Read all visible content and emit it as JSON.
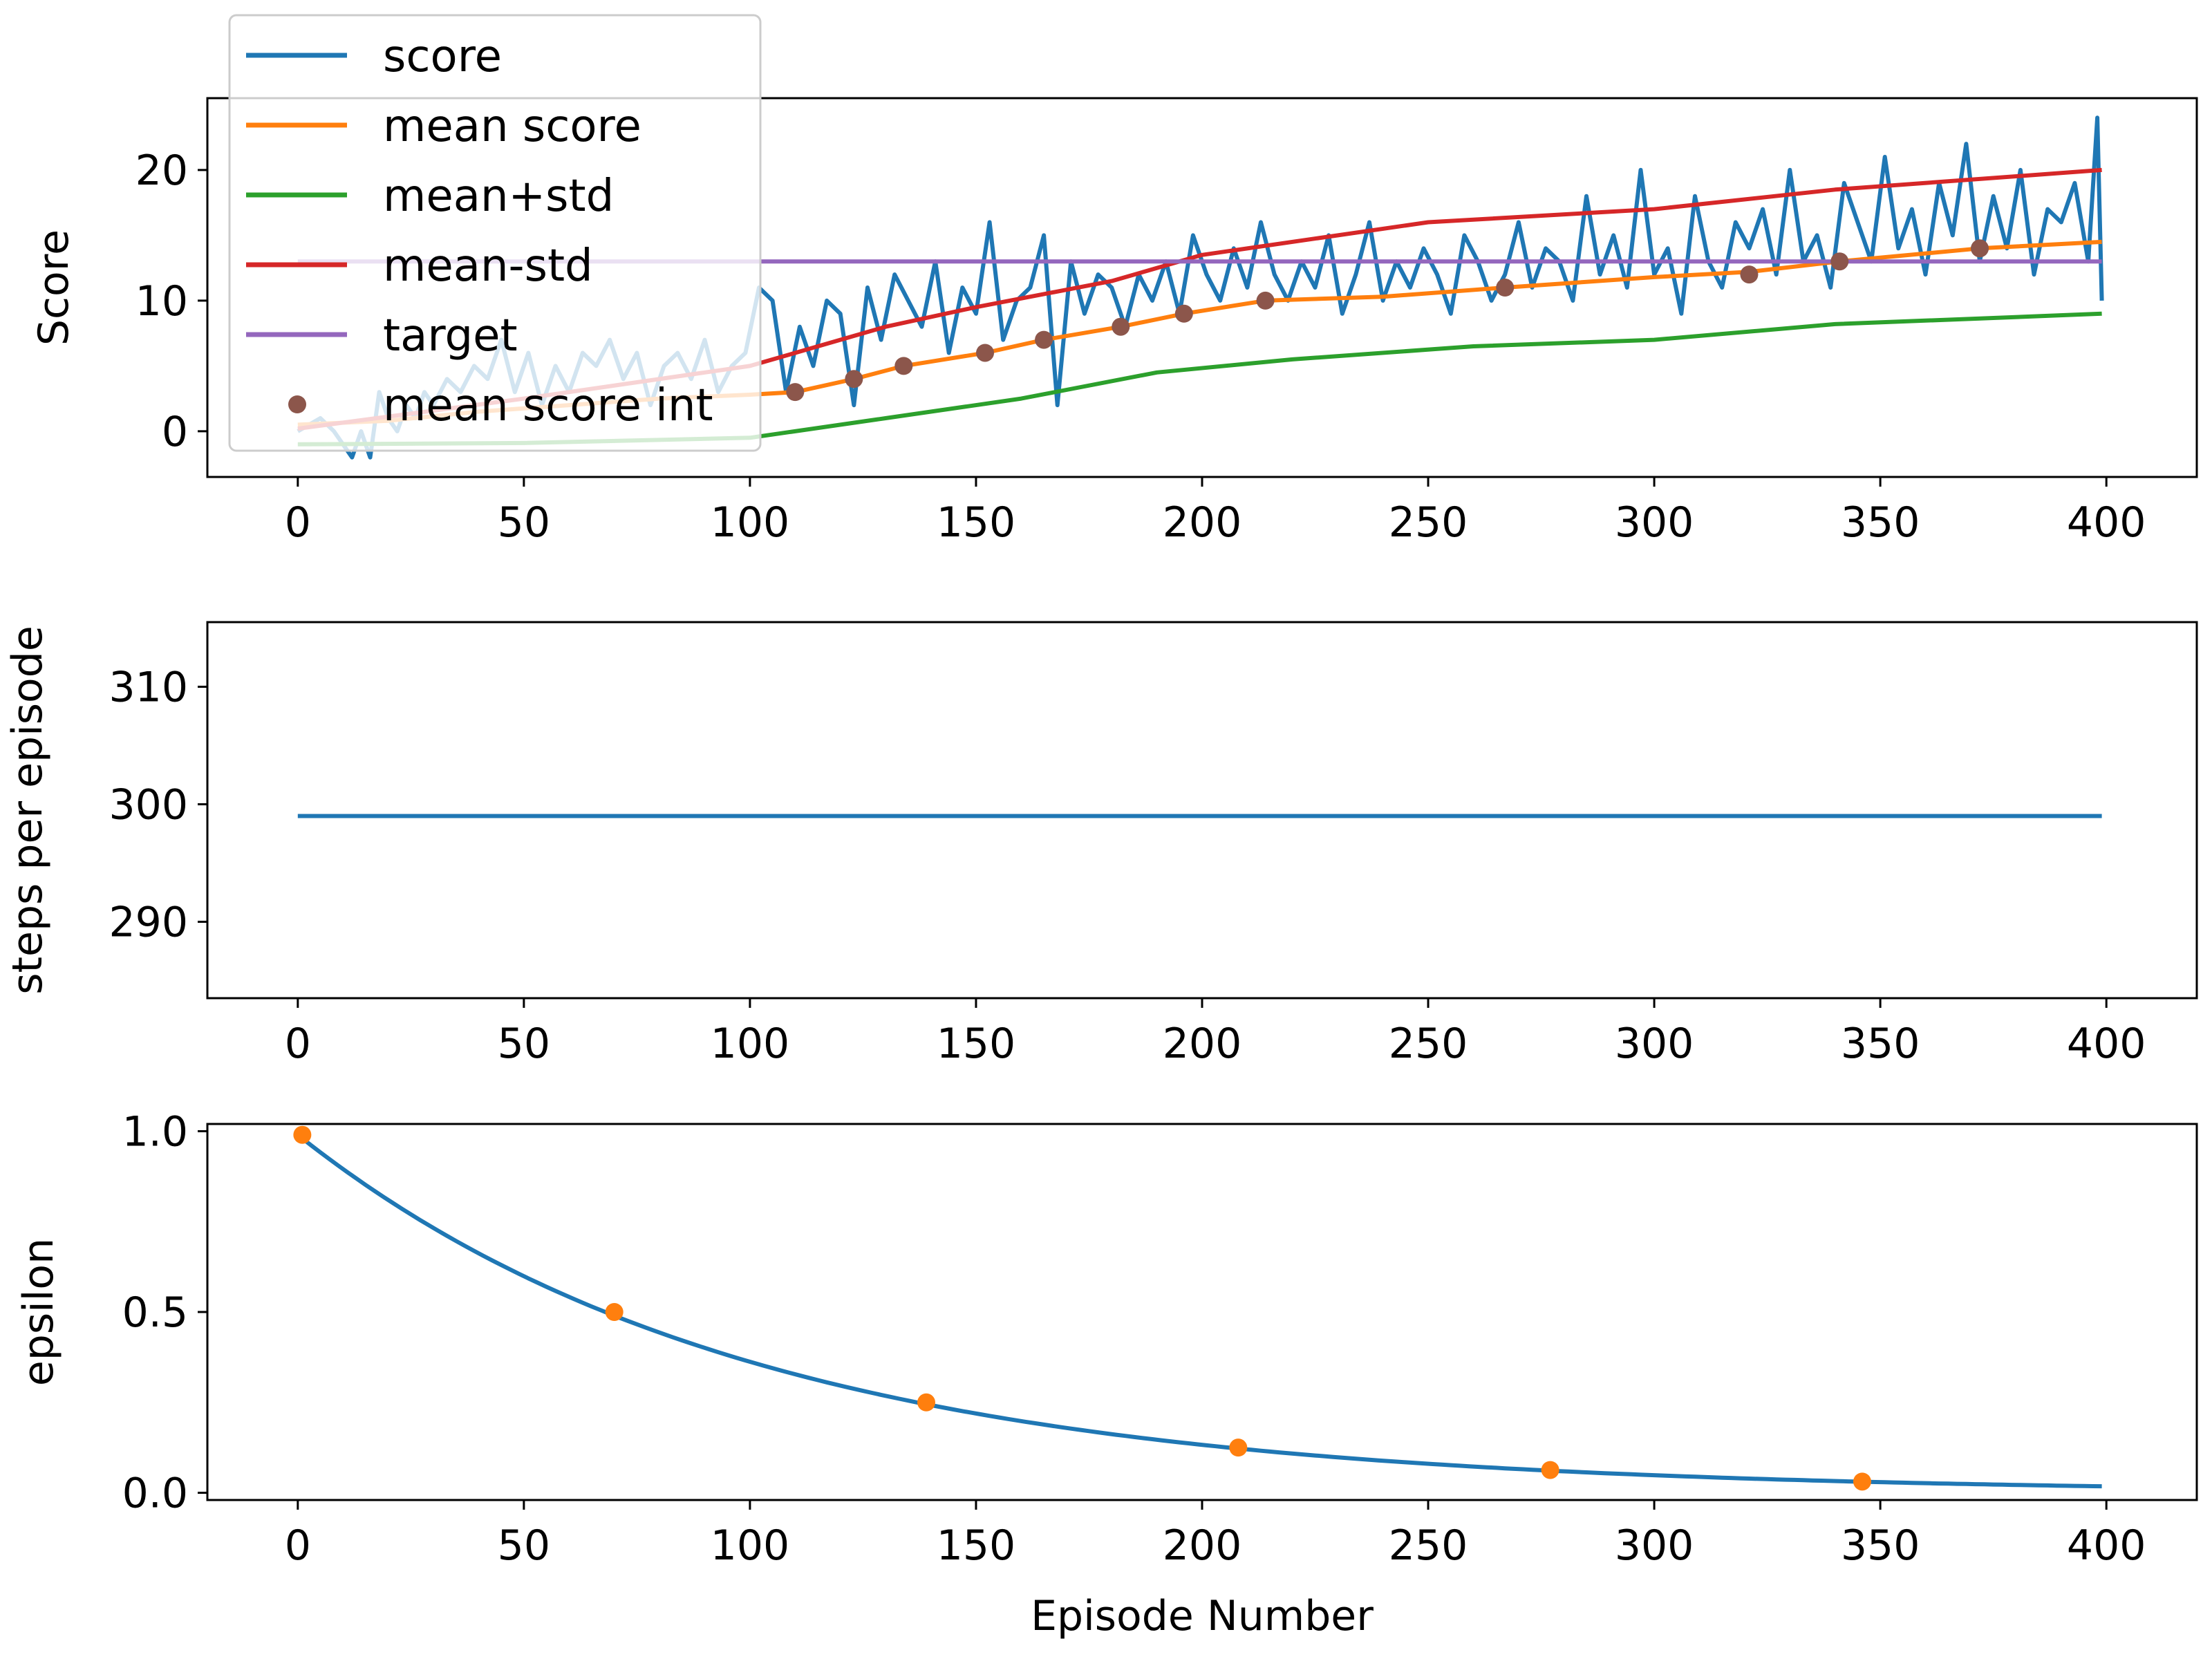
{
  "chart_data": [
    {
      "type": "line",
      "ylabel": "Score",
      "xlim": [
        -20,
        420
      ],
      "ylim": [
        -3.5,
        25.5
      ],
      "xticks": [
        0,
        50,
        100,
        150,
        200,
        250,
        300,
        350,
        400
      ],
      "yticks": [
        0,
        10,
        20
      ],
      "legend_position": "top-left",
      "legend": [
        {
          "label": "score",
          "marker": "line",
          "color": "#1f77b4"
        },
        {
          "label": "mean score",
          "marker": "line",
          "color": "#ff7f0e"
        },
        {
          "label": "mean+std",
          "marker": "line",
          "color": "#2ca02c"
        },
        {
          "label": "mean-std",
          "marker": "line",
          "color": "#d62728"
        },
        {
          "label": "target",
          "marker": "line",
          "color": "#9467bd"
        },
        {
          "label": "mean score int",
          "marker": "dot",
          "color": "#8c564b"
        }
      ],
      "series": [
        {
          "name": "score",
          "color": "#1f77b4",
          "x": [
            0,
            5,
            8,
            10,
            12,
            14,
            16,
            18,
            20,
            22,
            24,
            26,
            28,
            30,
            33,
            36,
            39,
            42,
            45,
            48,
            51,
            54,
            57,
            60,
            63,
            66,
            69,
            72,
            75,
            78,
            81,
            84,
            87,
            90,
            93,
            96,
            99,
            102,
            105,
            108,
            111,
            114,
            117,
            120,
            123,
            126,
            129,
            132,
            135,
            138,
            141,
            144,
            147,
            150,
            153,
            156,
            159,
            162,
            165,
            168,
            171,
            174,
            177,
            180,
            183,
            186,
            189,
            192,
            195,
            198,
            201,
            204,
            207,
            210,
            213,
            216,
            219,
            222,
            225,
            228,
            231,
            234,
            237,
            240,
            243,
            246,
            249,
            252,
            255,
            258,
            261,
            264,
            267,
            270,
            273,
            276,
            279,
            282,
            285,
            288,
            291,
            294,
            297,
            300,
            303,
            306,
            309,
            312,
            315,
            318,
            321,
            324,
            327,
            330,
            333,
            336,
            339,
            342,
            345,
            348,
            351,
            354,
            357,
            360,
            363,
            366,
            369,
            372,
            375,
            378,
            381,
            384,
            387,
            390,
            393,
            396,
            398,
            399
          ],
          "values": [
            0,
            1,
            0,
            -1,
            -2,
            0,
            -2,
            3,
            1,
            0,
            2,
            1,
            3,
            2,
            4,
            3,
            5,
            4,
            7,
            3,
            6,
            2,
            5,
            3,
            6,
            5,
            7,
            4,
            6,
            2,
            5,
            6,
            4,
            7,
            3,
            5,
            6,
            11,
            10,
            3,
            8,
            5,
            10,
            9,
            2,
            11,
            7,
            12,
            10,
            8,
            13,
            6,
            11,
            9,
            16,
            7,
            10,
            11,
            15,
            2,
            13,
            9,
            12,
            11,
            8,
            12,
            10,
            13,
            9,
            15,
            12,
            10,
            14,
            11,
            16,
            12,
            10,
            13,
            11,
            15,
            9,
            12,
            16,
            10,
            13,
            11,
            14,
            12,
            9,
            15,
            13,
            10,
            12,
            16,
            11,
            14,
            13,
            10,
            18,
            12,
            15,
            11,
            20,
            12,
            14,
            9,
            18,
            13,
            11,
            16,
            14,
            17,
            12,
            20,
            13,
            15,
            11,
            19,
            16,
            13,
            21,
            14,
            17,
            12,
            19,
            15,
            22,
            13,
            18,
            14,
            20,
            12,
            17,
            16,
            19,
            13,
            24,
            10
          ]
        },
        {
          "name": "mean score",
          "color": "#ff7f0e",
          "x": [
            0,
            20,
            40,
            60,
            80,
            100,
            110,
            123,
            134,
            152,
            165,
            182,
            196,
            214,
            240,
            267,
            300,
            321,
            341,
            372,
            399
          ],
          "values": [
            0.5,
            0.8,
            1.5,
            2,
            2.5,
            2.8,
            3,
            4,
            5,
            6,
            7,
            8,
            9,
            10,
            10.3,
            11,
            11.8,
            12.2,
            13,
            14,
            14.5
          ]
        },
        {
          "name": "mean+std",
          "color": "#2ca02c",
          "x": [
            0,
            50,
            100,
            130,
            160,
            190,
            220,
            260,
            300,
            340,
            399
          ],
          "values": [
            -1,
            -0.9,
            -0.5,
            1,
            2.5,
            4.5,
            5.5,
            6.5,
            7,
            8.2,
            9
          ]
        },
        {
          "name": "mean-std",
          "color": "#d62728",
          "x": [
            0,
            50,
            100,
            130,
            150,
            180,
            200,
            250,
            300,
            340,
            399
          ],
          "values": [
            0.2,
            2.5,
            5,
            8,
            9.5,
            11.5,
            13.5,
            16,
            17,
            18.5,
            20
          ]
        },
        {
          "name": "target",
          "color": "#9467bd",
          "x": [
            0,
            399
          ],
          "values": [
            13,
            13
          ]
        },
        {
          "name": "mean score int",
          "color": "#8c564b",
          "style": "dots",
          "x": [
            110,
            123,
            134,
            152,
            165,
            182,
            196,
            214,
            267,
            321,
            341,
            372
          ],
          "values": [
            3,
            4,
            5,
            6,
            7,
            8,
            9,
            10,
            11,
            12,
            13,
            14
          ]
        }
      ]
    },
    {
      "type": "line",
      "ylabel": "steps per episode",
      "xlim": [
        -20,
        420
      ],
      "ylim": [
        283.5,
        315.5
      ],
      "xticks": [
        0,
        50,
        100,
        150,
        200,
        250,
        300,
        350,
        400
      ],
      "yticks": [
        290,
        300,
        310
      ],
      "series": [
        {
          "color": "#1f77b4",
          "x": [
            0,
            399
          ],
          "values": [
            299,
            299
          ]
        }
      ]
    },
    {
      "type": "line",
      "ylabel": "epsilon",
      "xlabel": "Episode Number",
      "xlim": [
        -20,
        420
      ],
      "ylim": [
        -0.02,
        1.02
      ],
      "xticks": [
        0,
        50,
        100,
        150,
        200,
        250,
        300,
        350,
        400
      ],
      "yticks": [
        "0.0",
        "0.5",
        "1.0"
      ],
      "series": [
        {
          "color": "#1f77b4",
          "function": "0.99*0.99^x",
          "x_range": [
            1,
            399
          ]
        },
        {
          "color": "#ff7f0e",
          "style": "dots",
          "x": [
            1,
            70,
            139,
            208,
            277,
            346
          ],
          "values": [
            0.99,
            0.5,
            0.25,
            0.125,
            0.063,
            0.031
          ]
        }
      ]
    }
  ]
}
